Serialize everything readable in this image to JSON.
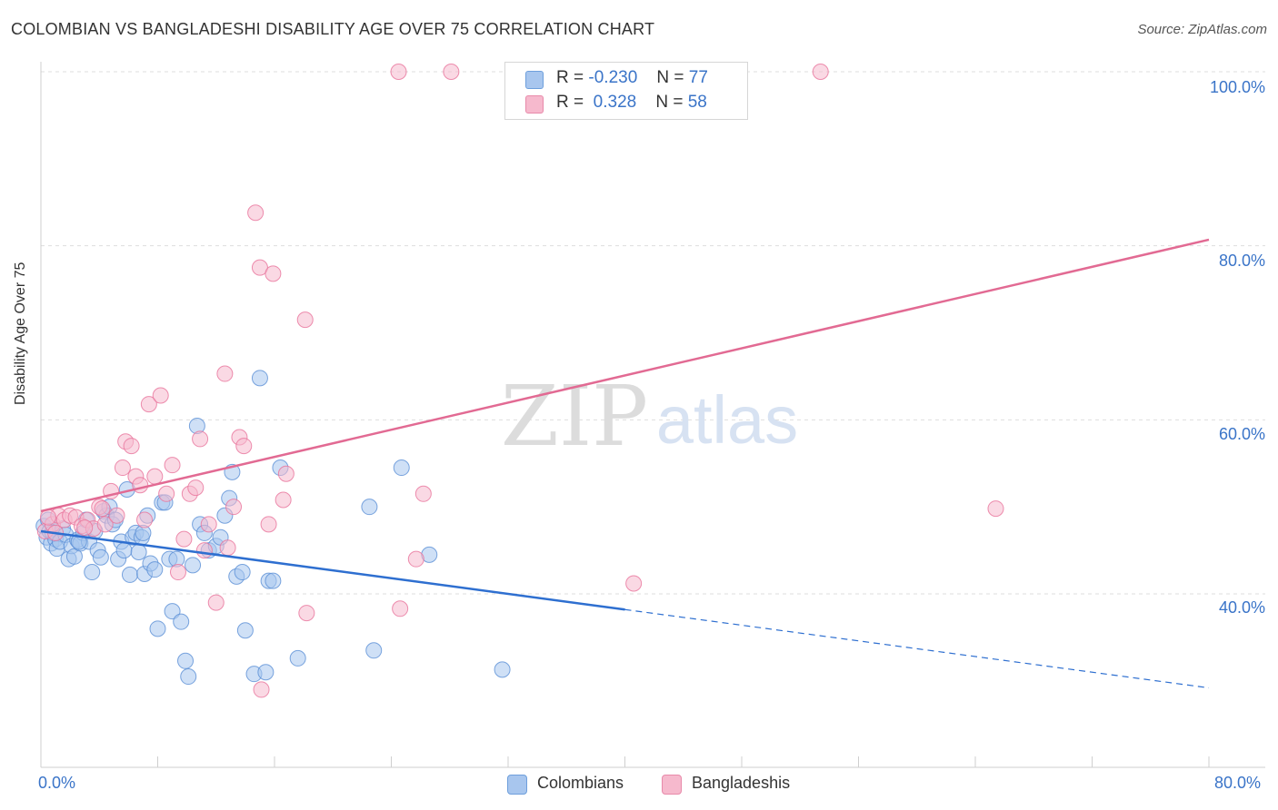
{
  "header": {
    "title": "COLOMBIAN VS BANGLADESHI DISABILITY AGE OVER 75 CORRELATION CHART",
    "source": "Source: ZipAtlas.com"
  },
  "watermark": {
    "zip": "ZIP",
    "atlas": "atlas"
  },
  "legend": {
    "rows": [
      {
        "r_label": "R =",
        "r_value": "-0.230",
        "n_label": "N =",
        "n_value": "77",
        "color": "#a8c6ee"
      },
      {
        "r_label": "R =",
        "r_value": "0.328",
        "n_label": "N =",
        "n_value": "58",
        "color": "#f6b9cd"
      }
    ]
  },
  "bottom_legend": [
    {
      "label": "Colombians",
      "color": "#a8c6ee"
    },
    {
      "label": "Bangladeshis",
      "color": "#f6b9cd"
    }
  ],
  "chart_data": {
    "type": "scatter",
    "title": "COLOMBIAN VS BANGLADESHI DISABILITY AGE OVER 75 CORRELATION CHART",
    "xlabel": "",
    "ylabel": "Disability Age Over 75",
    "xlim": [
      0,
      80
    ],
    "ylim": [
      20,
      102
    ],
    "y_ticks": [
      "100.0%",
      "80.0%",
      "60.0%",
      "40.0%"
    ],
    "y_tick_values": [
      100,
      80,
      60,
      40
    ],
    "x_ticks": [
      "0.0%",
      "80.0%"
    ],
    "x_tick_values": [
      0,
      80
    ],
    "grid": "horizontal dashed",
    "legend_position": "top-center",
    "series": [
      {
        "name": "Colombians",
        "color": "#5a8fd6",
        "fill": "#a8c6ee",
        "trend": {
          "x0": 0,
          "y0": 47.2,
          "x1": 40,
          "y1": 38.2,
          "dashed_to_x": 80,
          "dashed_to_y": 29.2
        },
        "points": [
          [
            0.2,
            47.8
          ],
          [
            0.4,
            46.5
          ],
          [
            0.5,
            48.5
          ],
          [
            0.6,
            47.2
          ],
          [
            0.7,
            45.8
          ],
          [
            0.8,
            47.0
          ],
          [
            1.0,
            46.3
          ],
          [
            1.1,
            45.2
          ],
          [
            1.3,
            46.0
          ],
          [
            1.5,
            47.5
          ],
          [
            1.7,
            46.8
          ],
          [
            1.9,
            44.0
          ],
          [
            2.1,
            45.5
          ],
          [
            2.3,
            44.3
          ],
          [
            2.5,
            46.2
          ],
          [
            2.7,
            45.8
          ],
          [
            2.9,
            47.0
          ],
          [
            3.1,
            48.5
          ],
          [
            3.3,
            46.0
          ],
          [
            3.5,
            42.5
          ],
          [
            3.7,
            47.2
          ],
          [
            3.9,
            45.0
          ],
          [
            4.1,
            44.2
          ],
          [
            4.3,
            49.5
          ],
          [
            4.5,
            49.0
          ],
          [
            4.7,
            50.0
          ],
          [
            4.9,
            48.0
          ],
          [
            5.1,
            48.5
          ],
          [
            5.3,
            44.0
          ],
          [
            5.5,
            46.0
          ],
          [
            5.7,
            45.0
          ],
          [
            5.9,
            52.0
          ],
          [
            6.1,
            42.2
          ],
          [
            6.3,
            46.5
          ],
          [
            6.5,
            47.0
          ],
          [
            6.7,
            44.8
          ],
          [
            6.9,
            46.5
          ],
          [
            7.1,
            42.3
          ],
          [
            7.3,
            49.0
          ],
          [
            7.5,
            43.5
          ],
          [
            7.8,
            42.8
          ],
          [
            8.0,
            36.0
          ],
          [
            8.3,
            50.5
          ],
          [
            8.5,
            50.5
          ],
          [
            8.8,
            44.0
          ],
          [
            9.0,
            38.0
          ],
          [
            9.3,
            44.0
          ],
          [
            9.6,
            36.8
          ],
          [
            9.9,
            32.3
          ],
          [
            10.1,
            30.5
          ],
          [
            10.4,
            43.3
          ],
          [
            10.7,
            59.3
          ],
          [
            10.9,
            48.0
          ],
          [
            11.2,
            47.0
          ],
          [
            11.5,
            45.0
          ],
          [
            12.0,
            45.5
          ],
          [
            12.3,
            46.5
          ],
          [
            12.6,
            49.0
          ],
          [
            12.9,
            51.0
          ],
          [
            13.1,
            54.0
          ],
          [
            13.4,
            42.0
          ],
          [
            13.8,
            42.5
          ],
          [
            14.0,
            35.8
          ],
          [
            14.6,
            30.8
          ],
          [
            15.0,
            64.8
          ],
          [
            15.4,
            31.0
          ],
          [
            15.6,
            41.5
          ],
          [
            15.9,
            41.5
          ],
          [
            16.4,
            54.5
          ],
          [
            17.6,
            32.6
          ],
          [
            22.5,
            50.0
          ],
          [
            22.8,
            33.5
          ],
          [
            24.7,
            54.5
          ],
          [
            26.6,
            44.5
          ],
          [
            31.6,
            31.3
          ],
          [
            2.6,
            46.0
          ],
          [
            7.0,
            47.0
          ]
        ]
      },
      {
        "name": "Bangladeshis",
        "color": "#e8739b",
        "fill": "#f6b9cd",
        "trend": {
          "x0": 0,
          "y0": 49.5,
          "x1": 80,
          "y1": 80.7
        },
        "points": [
          [
            0.3,
            47.2
          ],
          [
            0.8,
            48.0
          ],
          [
            1.2,
            49.0
          ],
          [
            1.6,
            48.5
          ],
          [
            2.0,
            49.0
          ],
          [
            2.4,
            48.8
          ],
          [
            2.8,
            47.8
          ],
          [
            3.2,
            48.5
          ],
          [
            3.6,
            47.5
          ],
          [
            4.0,
            50.0
          ],
          [
            4.4,
            48.0
          ],
          [
            4.8,
            51.8
          ],
          [
            5.2,
            49.0
          ],
          [
            5.6,
            54.5
          ],
          [
            5.8,
            57.5
          ],
          [
            6.2,
            57.0
          ],
          [
            6.5,
            53.5
          ],
          [
            6.8,
            52.5
          ],
          [
            7.1,
            48.5
          ],
          [
            7.4,
            61.8
          ],
          [
            7.8,
            53.5
          ],
          [
            8.2,
            62.8
          ],
          [
            8.6,
            51.5
          ],
          [
            9.0,
            54.8
          ],
          [
            9.4,
            42.5
          ],
          [
            9.8,
            46.3
          ],
          [
            10.2,
            51.5
          ],
          [
            10.6,
            52.2
          ],
          [
            10.9,
            57.8
          ],
          [
            11.2,
            45.0
          ],
          [
            11.5,
            48.0
          ],
          [
            12.0,
            39.0
          ],
          [
            12.6,
            65.3
          ],
          [
            12.8,
            45.3
          ],
          [
            13.2,
            50.0
          ],
          [
            13.6,
            58.0
          ],
          [
            13.9,
            57.0
          ],
          [
            14.7,
            83.8
          ],
          [
            15.0,
            77.5
          ],
          [
            15.6,
            48.0
          ],
          [
            15.9,
            76.8
          ],
          [
            16.8,
            53.8
          ],
          [
            16.6,
            50.8
          ],
          [
            18.1,
            71.5
          ],
          [
            18.2,
            37.8
          ],
          [
            24.5,
            100.0
          ],
          [
            24.6,
            38.3
          ],
          [
            25.7,
            44.0
          ],
          [
            26.2,
            51.5
          ],
          [
            28.1,
            100.0
          ],
          [
            40.6,
            41.2
          ],
          [
            53.4,
            100.0
          ],
          [
            65.4,
            49.8
          ],
          [
            15.1,
            29.0
          ],
          [
            1.0,
            47.0
          ],
          [
            3.0,
            47.6
          ],
          [
            0.5,
            48.8
          ],
          [
            4.2,
            49.8
          ]
        ]
      }
    ]
  }
}
